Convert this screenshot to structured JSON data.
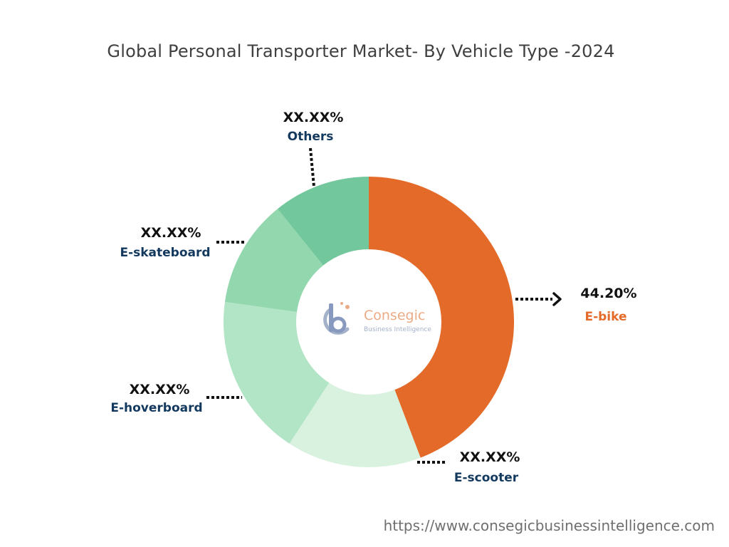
{
  "title": "Global Personal Transporter Market- By Vehicle Type -2024",
  "footer": {
    "url": "https://www.consegicbusinessintelligence.com"
  },
  "logo": {
    "name": "Consegic",
    "tagline": "Business Intelligence",
    "colors": {
      "primary": "#7b8fb8",
      "accent": "#e8a27a"
    }
  },
  "chart_data": {
    "type": "pie",
    "variant": "donut",
    "categories": [
      "E-bike",
      "E-scooter",
      "E-hoverboard",
      "E-skateboard",
      "Others"
    ],
    "values": [
      44.2,
      15.0,
      18.0,
      12.0,
      10.8
    ],
    "display_labels": [
      "44.20%",
      "XX.XX%",
      "XX.XX%",
      "XX.XX%",
      "XX.XX%"
    ],
    "colors": [
      "#e46a29",
      "#d9f2df",
      "#b2e4c6",
      "#92d7ad",
      "#72c79c"
    ],
    "label_colors": [
      "#e46a29",
      "#13395f",
      "#13395f",
      "#13395f",
      "#13395f"
    ],
    "start_angle_deg": 0,
    "direction": "clockwise",
    "legend": "none"
  }
}
